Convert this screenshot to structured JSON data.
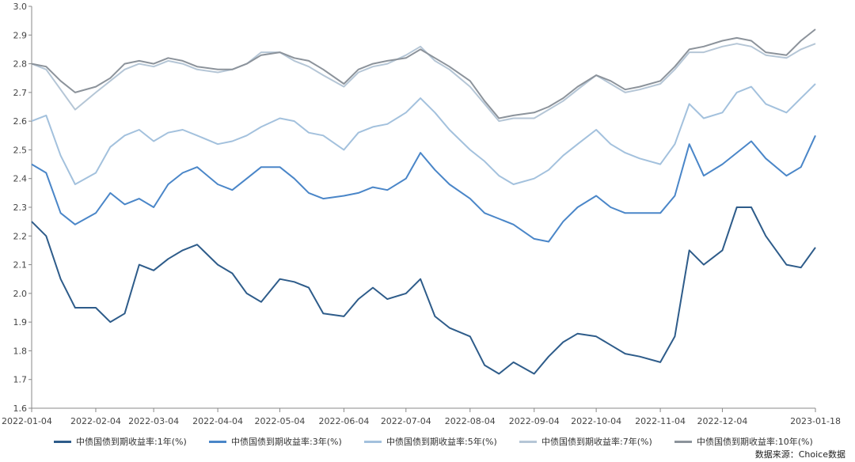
{
  "chart_data": {
    "type": "line",
    "title": "",
    "xlabel": "",
    "ylabel": "",
    "ylim": [
      1.6,
      3.0
    ],
    "yticks": [
      "1.6",
      "1.7",
      "1.8",
      "1.9",
      "2.0",
      "2.1",
      "2.2",
      "2.3",
      "2.4",
      "2.5",
      "2.6",
      "2.7",
      "2.8",
      "2.9",
      "3.0"
    ],
    "x_tick_labels": [
      "2022-01-04",
      "2022-02-04",
      "2022-03-04",
      "2022-04-04",
      "2022-05-04",
      "2022-06-04",
      "2022-07-04",
      "2022-08-04",
      "2022-09-04",
      "2022-10-04",
      "2022-11-04",
      "2022-12-04",
      "2023-01-18"
    ],
    "x": [
      "2022-01-04",
      "2022-01-11",
      "2022-01-18",
      "2022-01-25",
      "2022-02-04",
      "2022-02-11",
      "2022-02-18",
      "2022-02-25",
      "2022-03-04",
      "2022-03-11",
      "2022-03-18",
      "2022-03-25",
      "2022-04-04",
      "2022-04-11",
      "2022-04-18",
      "2022-04-25",
      "2022-05-04",
      "2022-05-11",
      "2022-05-18",
      "2022-05-25",
      "2022-06-04",
      "2022-06-11",
      "2022-06-18",
      "2022-06-25",
      "2022-07-04",
      "2022-07-11",
      "2022-07-18",
      "2022-07-25",
      "2022-08-04",
      "2022-08-11",
      "2022-08-18",
      "2022-08-25",
      "2022-09-04",
      "2022-09-11",
      "2022-09-18",
      "2022-09-25",
      "2022-10-04",
      "2022-10-11",
      "2022-10-18",
      "2022-10-25",
      "2022-11-04",
      "2022-11-11",
      "2022-11-18",
      "2022-11-25",
      "2022-12-04",
      "2022-12-11",
      "2022-12-18",
      "2022-12-25",
      "2023-01-04",
      "2023-01-11",
      "2023-01-18"
    ],
    "series": [
      {
        "name": "中债国债到期收益率:1年(%)",
        "color": "#2e5c8a",
        "values": [
          2.25,
          2.2,
          2.05,
          1.95,
          1.95,
          1.9,
          1.93,
          2.1,
          2.08,
          2.12,
          2.15,
          2.17,
          2.1,
          2.07,
          2.0,
          1.97,
          2.05,
          2.04,
          2.02,
          1.93,
          1.92,
          1.98,
          2.02,
          1.98,
          2.0,
          2.05,
          1.92,
          1.88,
          1.85,
          1.75,
          1.72,
          1.76,
          1.72,
          1.78,
          1.83,
          1.86,
          1.85,
          1.82,
          1.79,
          1.78,
          1.76,
          1.85,
          2.15,
          2.1,
          2.15,
          2.3,
          2.3,
          2.2,
          2.1,
          2.09,
          2.16
        ]
      },
      {
        "name": "中债国债到期收益率:3年(%)",
        "color": "#4a86c8",
        "values": [
          2.45,
          2.42,
          2.28,
          2.24,
          2.28,
          2.35,
          2.31,
          2.33,
          2.3,
          2.38,
          2.42,
          2.44,
          2.38,
          2.36,
          2.4,
          2.44,
          2.44,
          2.4,
          2.35,
          2.33,
          2.34,
          2.35,
          2.37,
          2.36,
          2.4,
          2.49,
          2.43,
          2.38,
          2.33,
          2.28,
          2.26,
          2.24,
          2.19,
          2.18,
          2.25,
          2.3,
          2.34,
          2.3,
          2.28,
          2.28,
          2.28,
          2.34,
          2.52,
          2.41,
          2.45,
          2.49,
          2.53,
          2.47,
          2.41,
          2.44,
          2.55
        ]
      },
      {
        "name": "中债国债到期收益率:5年(%)",
        "color": "#a3c1dd",
        "values": [
          2.6,
          2.62,
          2.48,
          2.38,
          2.42,
          2.51,
          2.55,
          2.57,
          2.53,
          2.56,
          2.57,
          2.55,
          2.52,
          2.53,
          2.55,
          2.58,
          2.61,
          2.6,
          2.56,
          2.55,
          2.5,
          2.56,
          2.58,
          2.59,
          2.63,
          2.68,
          2.63,
          2.57,
          2.5,
          2.46,
          2.41,
          2.38,
          2.4,
          2.43,
          2.48,
          2.52,
          2.57,
          2.52,
          2.49,
          2.47,
          2.45,
          2.52,
          2.66,
          2.61,
          2.63,
          2.7,
          2.72,
          2.66,
          2.63,
          2.68,
          2.73
        ]
      },
      {
        "name": "中债国债到期收益率:7年(%)",
        "color": "#b5c6d6",
        "values": [
          2.8,
          2.78,
          2.71,
          2.64,
          2.7,
          2.74,
          2.78,
          2.8,
          2.79,
          2.81,
          2.8,
          2.78,
          2.77,
          2.78,
          2.8,
          2.84,
          2.84,
          2.81,
          2.79,
          2.76,
          2.72,
          2.77,
          2.79,
          2.8,
          2.83,
          2.86,
          2.81,
          2.78,
          2.72,
          2.66,
          2.6,
          2.61,
          2.61,
          2.64,
          2.67,
          2.71,
          2.76,
          2.73,
          2.7,
          2.71,
          2.73,
          2.78,
          2.84,
          2.84,
          2.86,
          2.87,
          2.86,
          2.83,
          2.82,
          2.85,
          2.87
        ]
      },
      {
        "name": "中债国债到期收益率:10年(%)",
        "color": "#8c939b",
        "values": [
          2.8,
          2.79,
          2.74,
          2.7,
          2.72,
          2.75,
          2.8,
          2.81,
          2.8,
          2.82,
          2.81,
          2.79,
          2.78,
          2.78,
          2.8,
          2.83,
          2.84,
          2.82,
          2.81,
          2.78,
          2.73,
          2.78,
          2.8,
          2.81,
          2.82,
          2.85,
          2.82,
          2.79,
          2.74,
          2.67,
          2.61,
          2.62,
          2.63,
          2.65,
          2.68,
          2.72,
          2.76,
          2.74,
          2.71,
          2.72,
          2.74,
          2.79,
          2.85,
          2.86,
          2.88,
          2.89,
          2.88,
          2.84,
          2.83,
          2.88,
          2.92
        ]
      }
    ],
    "grid": false,
    "legend_position": "bottom"
  },
  "source_text": "数据来源：Choice数据"
}
